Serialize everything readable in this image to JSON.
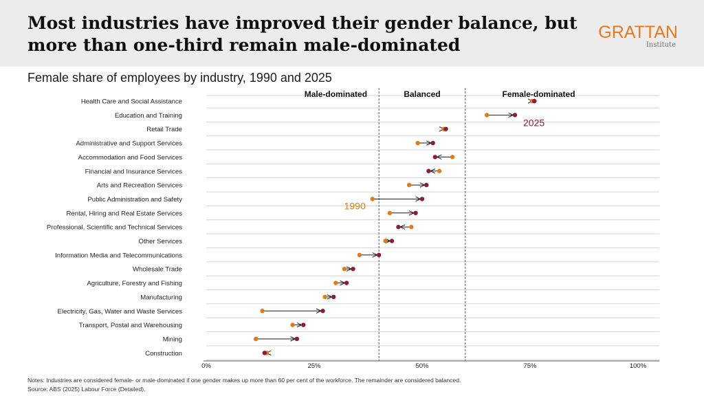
{
  "header": {
    "title_line1": "Most industries have improved their gender balance, but",
    "title_line2": "more than one-third remain male-dominated",
    "brand": "GRATTAN",
    "brand_sub": "Institute"
  },
  "subtitle": "Female share of employees by industry, 1990 and 2025",
  "notes": {
    "note": "Notes: Industries are considered female- or male-dominated if one gender makes up more than 60 per cent of the workforce. The remainder are considered balanced.",
    "source": "Source: ABS (2025) Labour Force (Detailed)."
  },
  "colors": {
    "y1990": "#e07b17",
    "y2025": "#8c1c3a",
    "grid": "#d6d6d6",
    "divider": "#555555"
  },
  "chart_data": {
    "type": "scatter",
    "subtype": "dumbbell",
    "x_unit": "female share of employees (%)",
    "xlim": [
      0,
      105
    ],
    "x_ticks": [
      {
        "value": 0,
        "label": "0%"
      },
      {
        "value": 25,
        "label": "25%"
      },
      {
        "value": 50,
        "label": "50%"
      },
      {
        "value": 75,
        "label": "75%"
      },
      {
        "value": 100,
        "label": "100%"
      }
    ],
    "region_boundaries": [
      40,
      60
    ],
    "regions": [
      {
        "label": "Male-dominated",
        "center": 30
      },
      {
        "label": "Balanced",
        "center": 50
      },
      {
        "label": "Female-dominated",
        "center": 77
      }
    ],
    "grid": true,
    "categories": [
      "Health Care and Social Assistance",
      "Education and Training",
      "Retail Trade",
      "Administrative and Support Services",
      "Accommodation and Food Services",
      "Financial and Insurance Services",
      "Arts and Recreation Services",
      "Public Administration and Safety",
      "Rental, Hiring and Real Estate Services",
      "Professional, Scientific and Technical Services",
      "Other Services",
      "Information Media and Telecommunications",
      "Wholesale Trade",
      "Agriculture, Forestry and Fishing",
      "Manufacturing",
      "Electricity, Gas, Water and Waste Services",
      "Transport, Postal and Warehousing",
      "Mining",
      "Construction"
    ],
    "series": [
      {
        "name": "1990",
        "values": [
          75.5,
          65,
          55,
          49,
          57,
          54,
          47,
          38.5,
          42.5,
          47.5,
          41.5,
          35.5,
          32,
          30,
          27.5,
          13,
          20,
          11.5,
          14
        ]
      },
      {
        "name": "2025",
        "values": [
          76,
          71.5,
          55.5,
          52.5,
          53,
          51.5,
          51,
          50,
          48.5,
          44.5,
          43,
          40,
          34,
          32.5,
          29.5,
          27,
          22.5,
          21,
          13.5
        ]
      }
    ],
    "annotations": [
      {
        "text": "2025",
        "series": "2025",
        "category": "Education and Training"
      },
      {
        "text": "1990",
        "series": "1990",
        "category": "Public Administration and Safety"
      }
    ]
  }
}
